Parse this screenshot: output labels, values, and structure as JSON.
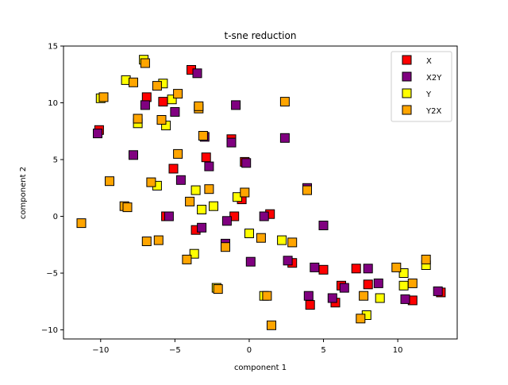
{
  "chart_data": {
    "type": "scatter",
    "title": "t-sne reduction",
    "xlabel": "component 1",
    "ylabel": "component 2",
    "xlim": [
      -12.5,
      14.0
    ],
    "ylim": [
      -10.8,
      15.0
    ],
    "xticks": [
      -10,
      -5,
      0,
      5,
      10
    ],
    "yticks": [
      -10,
      -5,
      0,
      5,
      10,
      15
    ],
    "xtick_labels": [
      "−10",
      "−5",
      "0",
      "5",
      "10"
    ],
    "ytick_labels": [
      "−10",
      "−5",
      "0",
      "5",
      "10",
      "15"
    ],
    "grid": false,
    "legend_position": "top-right",
    "marker": "square",
    "series": [
      {
        "name": "X",
        "color": "#ff0000",
        "points": [
          [
            -10.1,
            7.6
          ],
          [
            -6.9,
            10.5
          ],
          [
            -5.8,
            10.1
          ],
          [
            -5.6,
            0.0
          ],
          [
            -5.1,
            4.2
          ],
          [
            -3.9,
            12.9
          ],
          [
            -3.6,
            -1.2
          ],
          [
            -2.9,
            5.2
          ],
          [
            -1.2,
            6.8
          ],
          [
            -1.0,
            0.0
          ],
          [
            -0.3,
            4.8
          ],
          [
            -0.5,
            1.5
          ],
          [
            1.4,
            0.2
          ],
          [
            2.9,
            -4.1
          ],
          [
            4.1,
            -7.8
          ],
          [
            5.0,
            -4.7
          ],
          [
            5.8,
            -7.6
          ],
          [
            6.2,
            -6.1
          ],
          [
            7.2,
            -4.6
          ],
          [
            8.0,
            -6.0
          ],
          [
            11.0,
            -7.4
          ],
          [
            12.9,
            -6.7
          ]
        ]
      },
      {
        "name": "X2Y",
        "color": "#800080",
        "points": [
          [
            -10.2,
            7.3
          ],
          [
            -7.8,
            5.4
          ],
          [
            -7.0,
            9.8
          ],
          [
            -5.4,
            0.0
          ],
          [
            -5.0,
            9.2
          ],
          [
            -4.6,
            3.2
          ],
          [
            -3.5,
            12.6
          ],
          [
            -3.2,
            -1.0
          ],
          [
            -3.0,
            7.0
          ],
          [
            -2.7,
            4.4
          ],
          [
            -1.6,
            -2.4
          ],
          [
            -1.5,
            -0.4
          ],
          [
            -1.2,
            6.5
          ],
          [
            -0.9,
            9.8
          ],
          [
            -0.2,
            4.7
          ],
          [
            0.1,
            -4.0
          ],
          [
            1.0,
            0.0
          ],
          [
            2.4,
            6.9
          ],
          [
            2.6,
            -3.9
          ],
          [
            3.9,
            2.5
          ],
          [
            4.0,
            -7.0
          ],
          [
            4.4,
            -4.5
          ],
          [
            5.0,
            -0.8
          ],
          [
            5.6,
            -7.2
          ],
          [
            6.4,
            -6.3
          ],
          [
            8.0,
            -4.6
          ],
          [
            8.7,
            -5.9
          ],
          [
            10.5,
            -7.3
          ],
          [
            12.7,
            -6.6
          ]
        ]
      },
      {
        "name": "Y",
        "color": "#ffff00",
        "points": [
          [
            -10.0,
            10.4
          ],
          [
            -8.3,
            12.0
          ],
          [
            -7.5,
            8.2
          ],
          [
            -7.1,
            13.8
          ],
          [
            -6.2,
            2.7
          ],
          [
            -5.8,
            11.7
          ],
          [
            -5.6,
            8.0
          ],
          [
            -5.2,
            10.3
          ],
          [
            -3.7,
            -3.3
          ],
          [
            -3.6,
            2.3
          ],
          [
            -3.2,
            0.6
          ],
          [
            -2.4,
            0.9
          ],
          [
            -2.2,
            -6.3
          ],
          [
            -0.8,
            1.7
          ],
          [
            0.0,
            -1.5
          ],
          [
            1.0,
            -7.0
          ],
          [
            2.2,
            -2.1
          ],
          [
            7.9,
            -8.7
          ],
          [
            8.8,
            -7.2
          ],
          [
            10.4,
            -5.0
          ],
          [
            10.4,
            -6.1
          ],
          [
            11.9,
            -4.3
          ]
        ]
      },
      {
        "name": "Y2X",
        "color": "#ffa500",
        "points": [
          [
            -11.3,
            -0.6
          ],
          [
            -9.8,
            10.5
          ],
          [
            -9.4,
            3.1
          ],
          [
            -8.4,
            0.9
          ],
          [
            -8.2,
            0.8
          ],
          [
            -7.8,
            11.8
          ],
          [
            -7.5,
            8.6
          ],
          [
            -7.0,
            13.5
          ],
          [
            -6.9,
            -2.2
          ],
          [
            -6.6,
            3.0
          ],
          [
            -6.2,
            11.5
          ],
          [
            -5.9,
            8.5
          ],
          [
            -6.1,
            -2.1
          ],
          [
            -4.8,
            10.8
          ],
          [
            -4.8,
            5.5
          ],
          [
            -4.2,
            -3.8
          ],
          [
            -4.0,
            1.3
          ],
          [
            -3.4,
            9.5
          ],
          [
            -3.4,
            9.7
          ],
          [
            -3.1,
            7.1
          ],
          [
            -2.7,
            2.4
          ],
          [
            -2.1,
            -6.4
          ],
          [
            -1.6,
            -2.7
          ],
          [
            -0.3,
            2.1
          ],
          [
            0.8,
            -1.9
          ],
          [
            1.2,
            -7.0
          ],
          [
            1.5,
            -9.6
          ],
          [
            2.4,
            10.1
          ],
          [
            2.9,
            -2.3
          ],
          [
            3.9,
            2.3
          ],
          [
            7.5,
            -9.0
          ],
          [
            7.7,
            -7.0
          ],
          [
            9.9,
            -4.5
          ],
          [
            11.0,
            -5.9
          ],
          [
            11.9,
            -3.8
          ]
        ]
      }
    ]
  }
}
